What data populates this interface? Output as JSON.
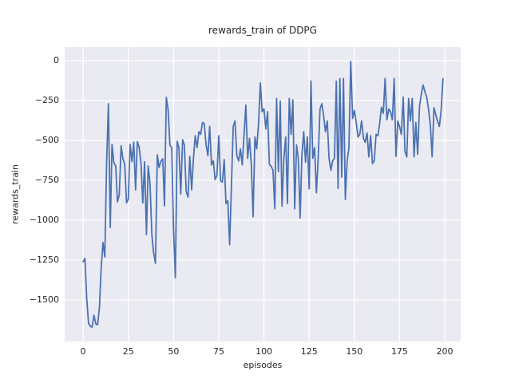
{
  "figure": {
    "title": "rewards_train of DDPG",
    "xlabel": "episodes",
    "ylabel": "rewards_train",
    "colors": {
      "figure_background": "#ffffff",
      "axes_background": "#eaeaf2",
      "grid": "#ffffff",
      "line": "#4c72b0",
      "text": "#262626"
    }
  },
  "chart_data": {
    "type": "line",
    "title": "rewards_train of DDPG",
    "xlabel": "episodes",
    "ylabel": "rewards_train",
    "grid": true,
    "legend_visible": false,
    "x_ticks": [
      0,
      25,
      50,
      75,
      100,
      125,
      150,
      175,
      200
    ],
    "y_ticks": [
      0,
      -250,
      -500,
      -750,
      -1000,
      -1250,
      -1500
    ],
    "xlim": [
      -10.2,
      208.8
    ],
    "ylim": [
      -1760,
      85
    ],
    "series": [
      {
        "name": "rewards_train",
        "color": "#4c72b0",
        "x_start": 0,
        "x_step": 1,
        "values": [
          -1260,
          -1240,
          -1490,
          -1645,
          -1665,
          -1670,
          -1595,
          -1650,
          -1655,
          -1550,
          -1300,
          -1140,
          -1230,
          -640,
          -270,
          -1045,
          -525,
          -640,
          -660,
          -885,
          -840,
          -533,
          -615,
          -650,
          -892,
          -867,
          -525,
          -633,
          -510,
          -810,
          -508,
          -542,
          -642,
          -892,
          -633,
          -1090,
          -660,
          -770,
          -1090,
          -1205,
          -1270,
          -590,
          -670,
          -630,
          -615,
          -910,
          -230,
          -305,
          -530,
          -545,
          -1050,
          -1360,
          -505,
          -545,
          -835,
          -495,
          -530,
          -820,
          -855,
          -600,
          -810,
          -612,
          -470,
          -545,
          -445,
          -462,
          -387,
          -395,
          -528,
          -595,
          -412,
          -653,
          -628,
          -745,
          -720,
          -470,
          -753,
          -762,
          -620,
          -895,
          -878,
          -1153,
          -795,
          -412,
          -378,
          -595,
          -628,
          -553,
          -653,
          -462,
          -278,
          -612,
          -487,
          -645,
          -978,
          -478,
          -553,
          -395,
          -140,
          -320,
          -302,
          -428,
          -320,
          -650,
          -662,
          -687,
          -928,
          -237,
          -695,
          -253,
          -912,
          -612,
          -478,
          -895,
          -237,
          -462,
          -245,
          -928,
          -528,
          -612,
          -987,
          -595,
          -445,
          -637,
          -478,
          -803,
          -128,
          -612,
          -545,
          -828,
          -612,
          -303,
          -270,
          -345,
          -445,
          -378,
          -612,
          -687,
          -628,
          -612,
          -128,
          -800,
          -112,
          -730,
          -112,
          -870,
          -628,
          -545,
          -5,
          -362,
          -312,
          -387,
          -478,
          -462,
          -378,
          -487,
          -512,
          -453,
          -603,
          -470,
          -645,
          -628,
          -462,
          -470,
          -395,
          -292,
          -330,
          -112,
          -370,
          -303,
          -320,
          -370,
          -112,
          -600,
          -378,
          -412,
          -462,
          -228,
          -570,
          -603,
          -237,
          -378,
          -237,
          -603,
          -387,
          -587,
          -287,
          -212,
          -153,
          -195,
          -228,
          -303,
          -403,
          -603,
          -295,
          -337,
          -378,
          -412,
          -312,
          -112
        ]
      }
    ]
  }
}
